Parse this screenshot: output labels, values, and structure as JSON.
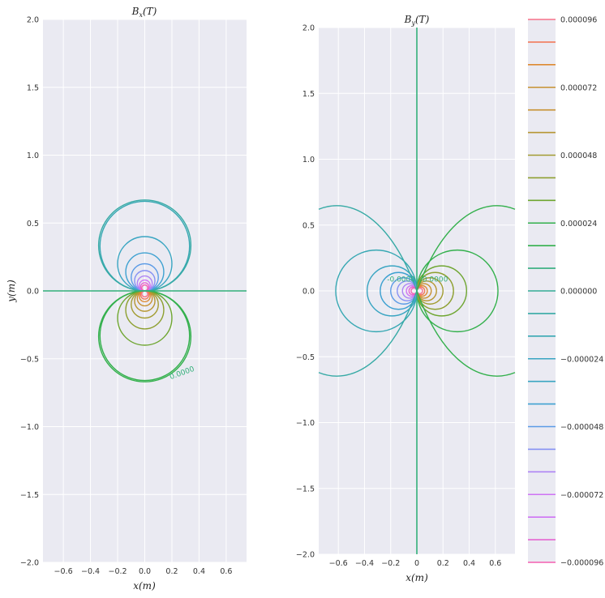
{
  "chart_data": [
    {
      "type": "contour",
      "panel": "left",
      "title": "B_x(T)",
      "title_display": "Bx(T)",
      "xlabel": "x(m)",
      "ylabel": "y(m)",
      "xlim": [
        -0.75,
        0.75
      ],
      "ylim": [
        -2.0,
        2.0
      ],
      "xticks": [
        -0.6,
        -0.4,
        -0.2,
        0.0,
        0.2,
        0.4,
        0.6
      ],
      "xtick_labels": [
        "−0.6",
        "−0.4",
        "−0.2",
        "0.0",
        "0.2",
        "0.4",
        "0.6"
      ],
      "yticks": [
        -2.0,
        -1.5,
        -1.0,
        -0.5,
        0.0,
        0.5,
        1.0,
        1.5,
        2.0
      ],
      "ytick_labels": [
        "−2.0",
        "−1.5",
        "−1.0",
        "−0.5",
        "0.0",
        "0.5",
        "1.0",
        "1.5",
        "2.0"
      ],
      "grid": true,
      "field": "bx",
      "radii": [
        0.33,
        0.2,
        0.14,
        0.1,
        0.075,
        0.055,
        0.04,
        0.03,
        0.022
      ],
      "zero_line": "horizontal",
      "contour_labels": [
        {
          "text": "0.0000",
          "x": 0.28,
          "y": -0.62
        }
      ]
    },
    {
      "type": "contour",
      "panel": "right",
      "title": "B_y(T)",
      "title_display": "By(T)",
      "xlabel": "x(m)",
      "ylabel": "",
      "xlim": [
        -0.75,
        0.75
      ],
      "ylim": [
        -2.0,
        2.0
      ],
      "xticks": [
        -0.6,
        -0.4,
        -0.2,
        0.0,
        0.2,
        0.4,
        0.6
      ],
      "xtick_labels": [
        "−0.6",
        "−0.4",
        "−0.2",
        "0",
        "0.2",
        "0.4",
        "0.6"
      ],
      "yticks": [
        -2.0,
        -1.5,
        -1.0,
        -0.5,
        0.0,
        0.5,
        1.0,
        1.5,
        2.0
      ],
      "ytick_labels": [
        "−2.0",
        "−1.5",
        "−1.0",
        "−0.5",
        "0.0",
        "0.5",
        "1.0",
        "1.5",
        "2.0"
      ],
      "grid": true,
      "field": "by",
      "radii": [
        0.31,
        0.19,
        0.14,
        0.1,
        0.075,
        0.055,
        0.04,
        0.03,
        0.022
      ],
      "zero_line": "vertical",
      "contour_labels": [
        {
          "text": "-0.0000",
          "x": -0.12,
          "y": 0.07
        },
        {
          "text": "0.0000",
          "x": 0.14,
          "y": 0.07
        }
      ]
    }
  ],
  "colorbar": {
    "levels": [
      9.6e-05,
      7.2e-05,
      4.8e-05,
      2.4e-05,
      0.0,
      -2.4e-05,
      -4.8e-05,
      -7.2e-05,
      -9.6e-05
    ],
    "labels": [
      "0.000096",
      "0.000072",
      "0.000048",
      "0.000024",
      "0.000000",
      "−0.000024",
      "−0.000048",
      "−0.000072",
      "−0.000096"
    ],
    "n_lines": 25,
    "colors_top_to_bottom": [
      "#f77189",
      "#f27a5b",
      "#dd8a31",
      "#c79131",
      "#b69631",
      "#a29c31",
      "#8ea031",
      "#6fa631",
      "#33b04c",
      "#34ae7e",
      "#35ac96",
      "#36aaa5",
      "#37a8b3",
      "#39a5c2",
      "#3ea1d1",
      "#5b9be6",
      "#8691f3",
      "#ae84f4",
      "#cf73f4",
      "#e565d1",
      "#f45fb0"
    ]
  },
  "colors": {
    "axes_bg": "#eaeaf2",
    "grid": "#ffffff",
    "zero_contour": "#33b07a"
  }
}
